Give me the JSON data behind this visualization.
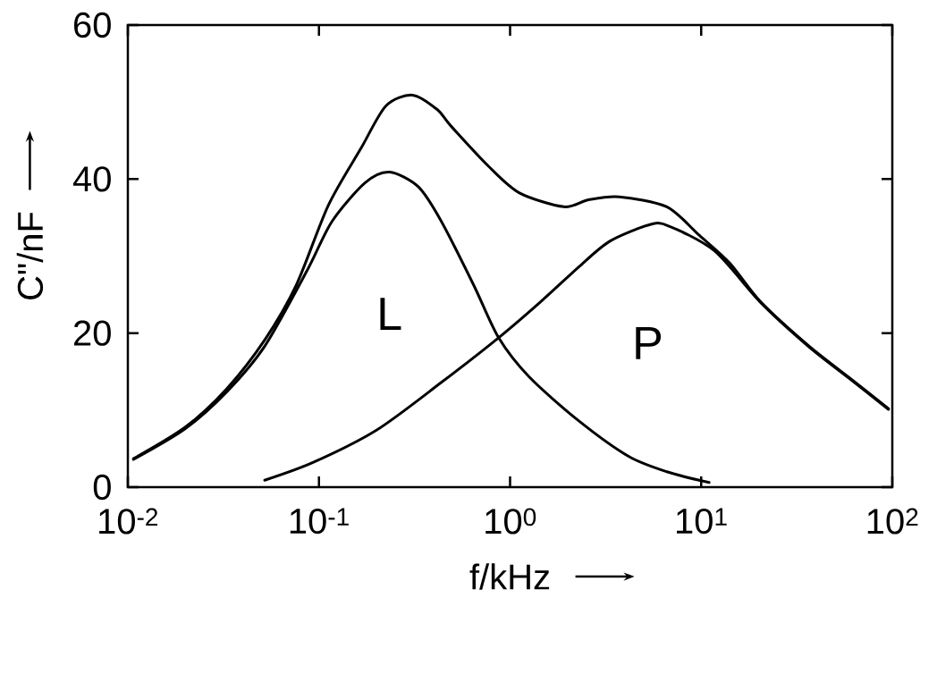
{
  "chart_data": {
    "type": "line",
    "xlabel": "f/kHz",
    "ylabel": "C\"/nF",
    "log": "x",
    "xlim": [
      0.01,
      100
    ],
    "ylim": [
      0,
      60
    ],
    "xticks": [
      {
        "value": 0.01,
        "label": "10$^{-2}$"
      },
      {
        "value": 0.1,
        "label": "10$^{-1}$"
      },
      {
        "value": 1,
        "label": "10$^{0}$"
      },
      {
        "value": 10,
        "label": "10$^{1}$"
      },
      {
        "value": 100,
        "label": "10$^{2}$"
      }
    ],
    "yticks": [
      0,
      20,
      40,
      60
    ],
    "series": [
      {
        "color": "#000000",
        "x": [
          0.0107,
          0.02,
          0.033,
          0.052,
          0.076,
          0.112,
          0.166,
          0.224,
          0.309,
          0.417,
          0.49,
          0.776,
          1.12,
          1.91,
          2.57,
          3.72,
          6.61,
          9.77,
          14.1,
          20.4,
          36.3,
          58.9,
          95.5
        ],
        "values": [
          3.7,
          7.8,
          12.8,
          19.1,
          26.2,
          36.6,
          44.0,
          49.5,
          50.9,
          49.0,
          46.9,
          41.6,
          38.2,
          36.4,
          37.3,
          37.7,
          36.4,
          32.7,
          29.1,
          24.1,
          18.4,
          14.3,
          10.2
        ]
      },
      {
        "name": "L",
        "color": "#000000",
        "x": [
          0.0107,
          0.02,
          0.033,
          0.052,
          0.087,
          0.117,
          0.174,
          0.234,
          0.331,
          0.437,
          0.646,
          0.871,
          1.26,
          2.29,
          4.17,
          6.61,
          11.0
        ],
        "values": [
          3.6,
          7.6,
          12.4,
          18.3,
          28.2,
          34.5,
          39.5,
          40.9,
          39.0,
          34.5,
          26.2,
          19.4,
          14.3,
          8.6,
          4.0,
          2.0,
          0.6
        ]
      },
      {
        "name": "P",
        "color": "#000000",
        "x": [
          0.052,
          0.093,
          0.2,
          0.437,
          0.871,
          1.45,
          2.29,
          3.31,
          5.25,
          6.61,
          11.7,
          20.4,
          36.3,
          58.9,
          95.5
        ],
        "values": [
          0.9,
          3.2,
          7.4,
          13.6,
          19.4,
          24.1,
          28.6,
          31.9,
          34.0,
          34.0,
          30.7,
          24.0,
          18.3,
          14.2,
          10.1
        ]
      }
    ]
  }
}
